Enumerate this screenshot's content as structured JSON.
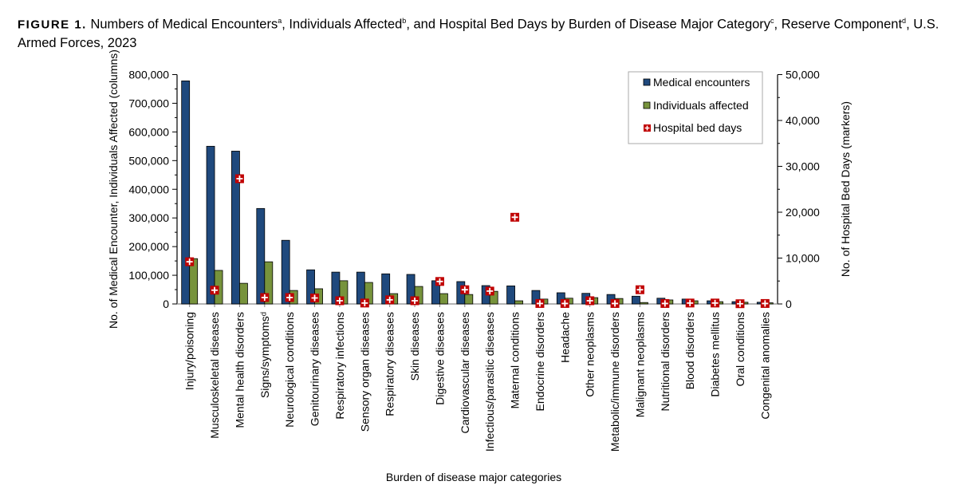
{
  "title": {
    "figure_label": "FIGURE 1.",
    "parts": [
      "Numbers of Medical Encounters",
      "a",
      ", Individuals Affected",
      "b",
      ", and Hospital Bed Days by Burden of Disease Major Category",
      "c",
      ", Reserve Component",
      "d",
      ", U.S. Armed Forces, 2023"
    ]
  },
  "chart_data": {
    "type": "bar",
    "xlabel": "Burden of disease major categories",
    "ylabel_left": "No. of Medical Encounter, Individuals Affected (columns)",
    "ylabel_right": "No. of Hospital Bed Days (markers)",
    "ylim_left": [
      0,
      800000
    ],
    "ylim_right": [
      0,
      50000
    ],
    "yticks_left": [
      "0",
      "100,000",
      "200,000",
      "300,000",
      "400,000",
      "500,000",
      "600,000",
      "700,000",
      "800,000"
    ],
    "yticks_right": [
      "0",
      "10,000",
      "20,000",
      "30,000",
      "40,000",
      "50,000"
    ],
    "grid": false,
    "legend_position": "top-right",
    "categories": [
      "Injury/poisoning",
      "Musculoskeletal diseases",
      "Mental health disorders",
      "Signs/symptomsᵈ",
      "Neurological conditions",
      "Genitourinary diseases",
      "Respiratory infections",
      "Sensory organ diseases",
      "Respiratory diseases",
      "Skin diseases",
      "Digestive diseases",
      "Cardiovascular diseases",
      "Infectious/parasitic diseases",
      "Maternal conditions",
      "Endocrine disorders",
      "Headache",
      "Other neoplasms",
      "Metabolic/immune disorders",
      "Malignant neoplasms",
      "Nutritional disorders",
      "Blood disorders",
      "Diabetes mellitus",
      "Oral conditions",
      "Congenital anomalies"
    ],
    "series": [
      {
        "name": "Medical encounters",
        "kind": "bar",
        "axis": "left",
        "color": "#1f497d",
        "values": [
          778000,
          550000,
          533000,
          333000,
          222000,
          119000,
          111000,
          111000,
          105000,
          103000,
          81000,
          78000,
          64000,
          63000,
          47000,
          39000,
          37000,
          33000,
          27000,
          20000,
          17000,
          11000,
          8000,
          6000
        ]
      },
      {
        "name": "Individuals affected",
        "kind": "bar",
        "axis": "left",
        "color": "#77933c",
        "values": [
          158000,
          117000,
          72000,
          147000,
          47000,
          53000,
          81000,
          75000,
          36000,
          61000,
          36000,
          33000,
          44000,
          11000,
          17000,
          20000,
          22000,
          19000,
          5000,
          14000,
          11000,
          8000,
          6000,
          4000
        ]
      },
      {
        "name": "Hospital bed days",
        "kind": "marker",
        "axis": "right",
        "color": "#c00000",
        "values": [
          9200,
          3000,
          27300,
          1400,
          1400,
          1300,
          700,
          200,
          900,
          700,
          4900,
          3100,
          2800,
          18900,
          100,
          100,
          700,
          100,
          3100,
          100,
          200,
          200,
          50,
          100
        ]
      }
    ]
  }
}
